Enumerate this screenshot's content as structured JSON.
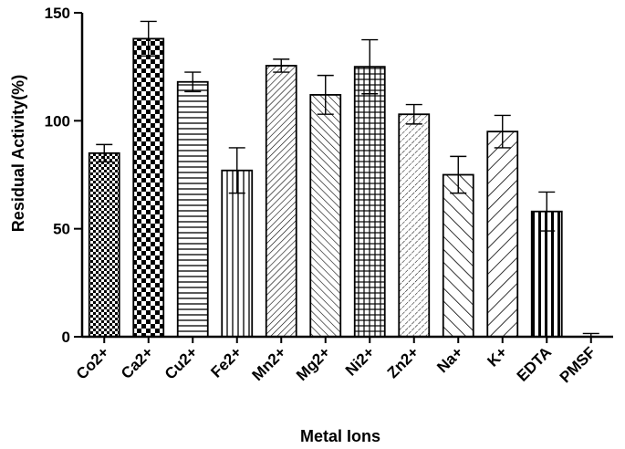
{
  "chart_data": {
    "type": "bar",
    "title": "",
    "xlabel": "Metal Ions",
    "ylabel": "Residual Activity(%)",
    "ylim": [
      0,
      150
    ],
    "yticks": [
      "0",
      "50",
      "100",
      "150"
    ],
    "grid": false,
    "categories": [
      "Co2+",
      "Ca2+",
      "Cu2+",
      "Fe2+",
      "Mn2+",
      "Mg2+",
      "Ni2+",
      "Zn2+",
      "Na+",
      "K+",
      "EDTA",
      "PMSF"
    ],
    "values": [
      85,
      138,
      118,
      77,
      125.5,
      112,
      125,
      103,
      75,
      95,
      58,
      0
    ],
    "error": [
      4,
      8,
      4.5,
      10.5,
      3,
      9,
      12.5,
      4.5,
      8.5,
      7.5,
      9,
      1.5
    ],
    "patterns": [
      "small-check",
      "big-check",
      "horizontal",
      "vertical",
      "diag-dense",
      "diag-back",
      "grid",
      "diag-dots",
      "diag-back-wide",
      "diag-wide",
      "vertical-bold",
      "none"
    ],
    "colors": {
      "ink": "#000000",
      "fill": "#ffffff"
    }
  }
}
